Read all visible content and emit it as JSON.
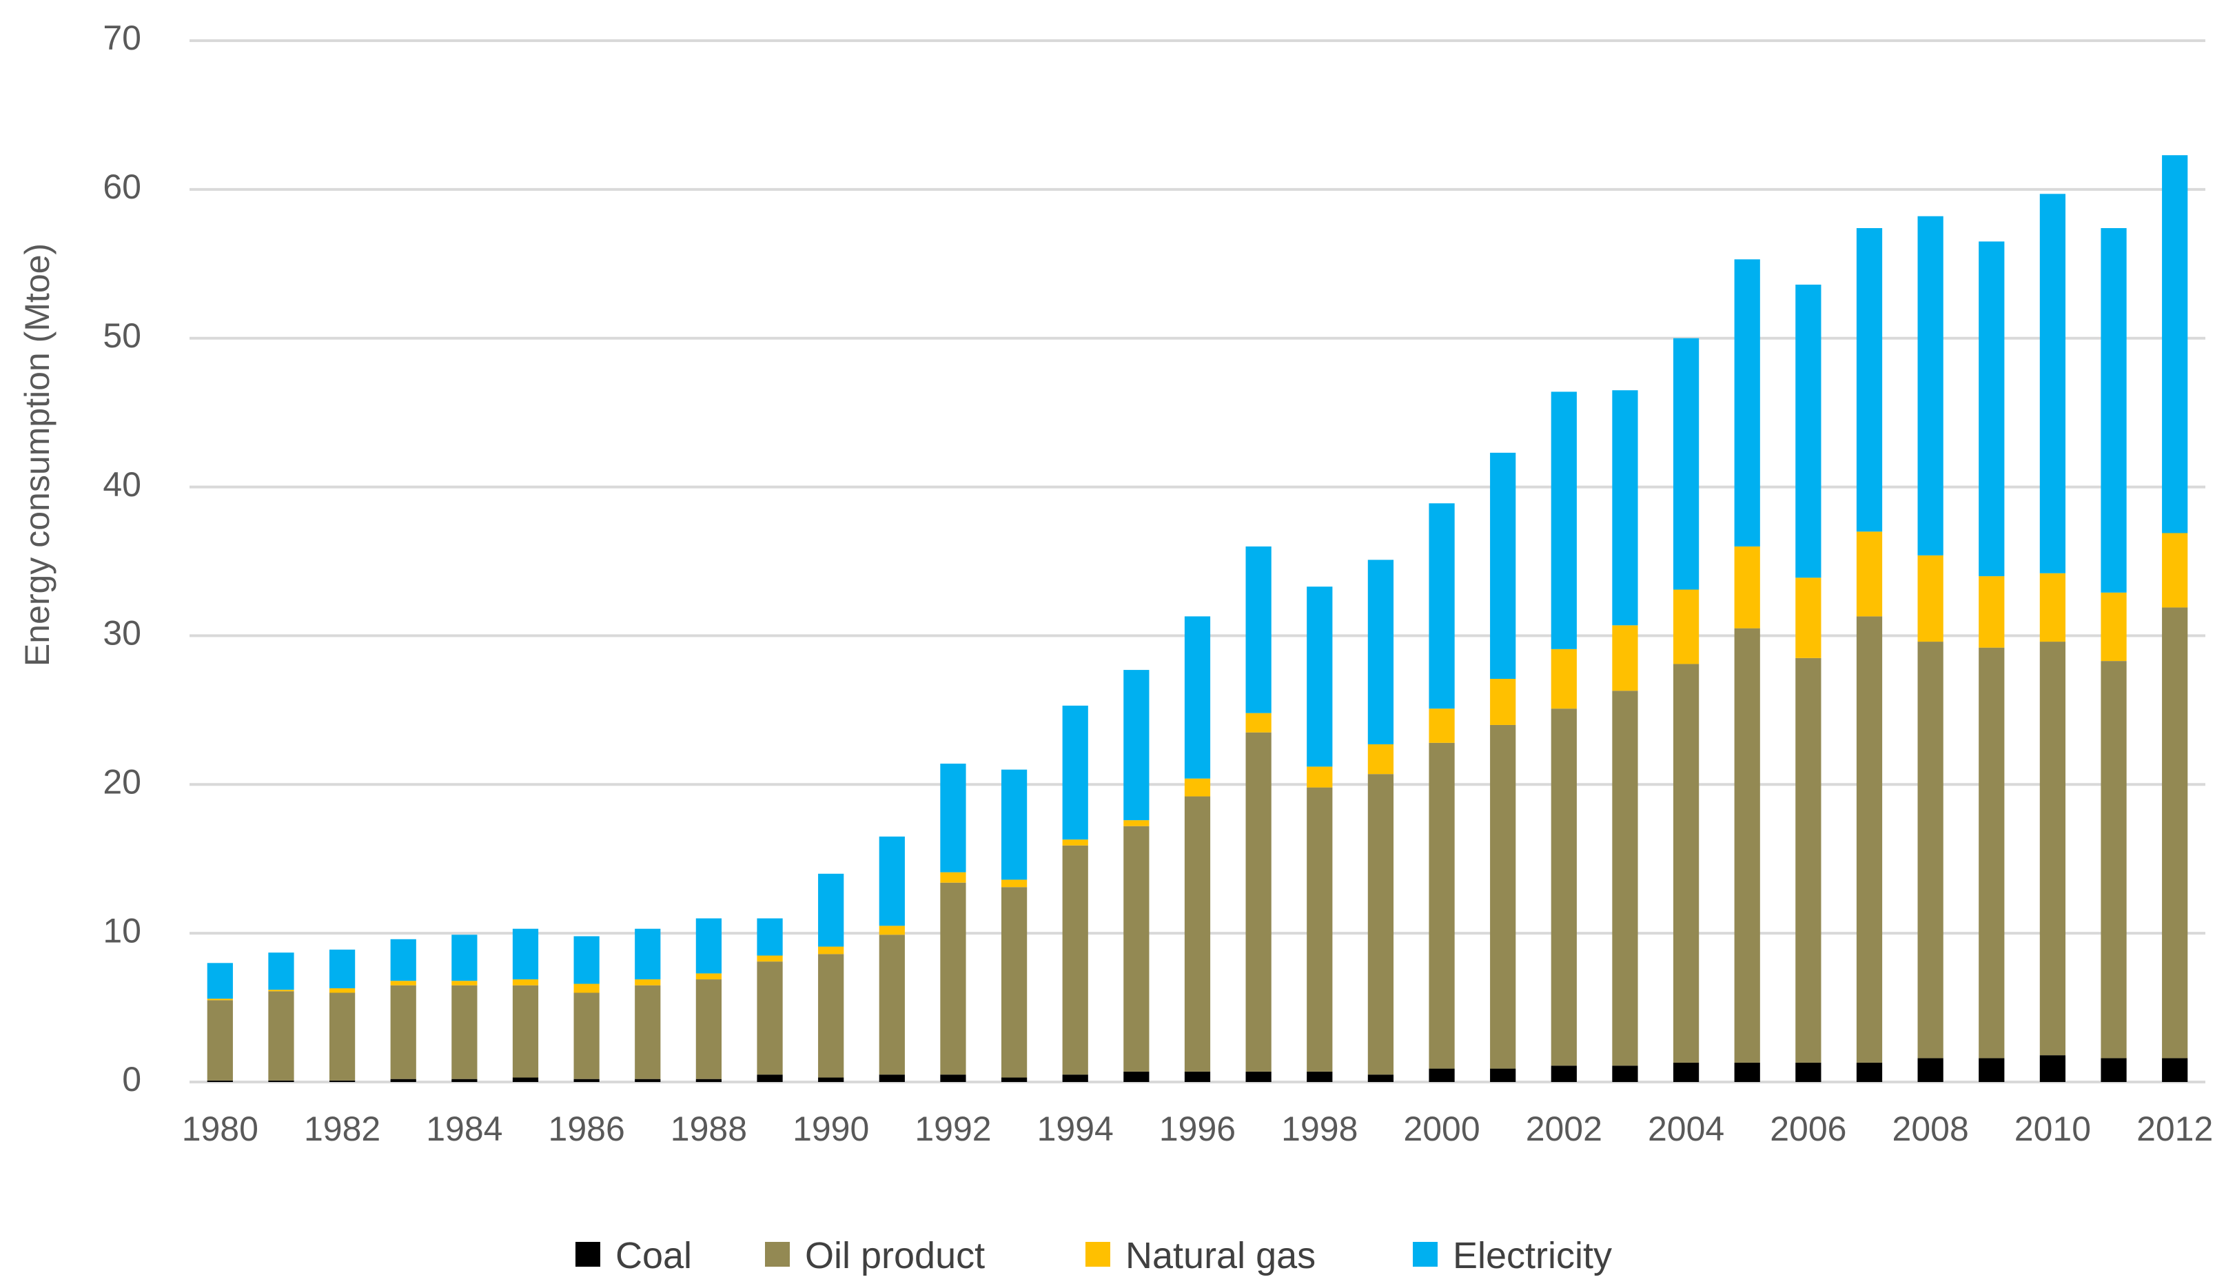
{
  "chart_data": {
    "type": "bar",
    "stacked": true,
    "title": "",
    "xlabel": "",
    "ylabel": "Energy consumption (Mtoe)",
    "ylim": [
      0,
      70
    ],
    "yticks": [
      0,
      10,
      20,
      30,
      40,
      50,
      60,
      70
    ],
    "grid": true,
    "legend_position": "bottom",
    "categories": [
      "1980",
      "1981",
      "1982",
      "1983",
      "1984",
      "1985",
      "1986",
      "1987",
      "1988",
      "1989",
      "1990",
      "1991",
      "1992",
      "1993",
      "1994",
      "1995",
      "1996",
      "1997",
      "1998",
      "1999",
      "2000",
      "2001",
      "2002",
      "2003",
      "2004",
      "2005",
      "2006",
      "2007",
      "2008",
      "2009",
      "2010",
      "2011",
      "2012"
    ],
    "tick_labels": [
      "1980",
      "",
      "1982",
      "",
      "1984",
      "",
      "1986",
      "",
      "1988",
      "",
      "1990",
      "",
      "1992",
      "",
      "1994",
      "",
      "1996",
      "",
      "1998",
      "",
      "2000",
      "",
      "2002",
      "",
      "2004",
      "",
      "2006",
      "",
      "2008",
      "",
      "2010",
      "",
      "2012"
    ],
    "series": [
      {
        "name": "Coal",
        "color": "#000000",
        "values": [
          0.1,
          0.1,
          0.1,
          0.2,
          0.2,
          0.3,
          0.2,
          0.2,
          0.2,
          0.5,
          0.3,
          0.5,
          0.5,
          0.3,
          0.5,
          0.7,
          0.7,
          0.7,
          0.7,
          0.5,
          0.9,
          0.9,
          1.1,
          1.1,
          1.3,
          1.3,
          1.3,
          1.3,
          1.6,
          1.6,
          1.8,
          1.6,
          1.6
        ]
      },
      {
        "name": "Oil product",
        "color": "#938953",
        "values": [
          5.4,
          6.0,
          5.9,
          6.3,
          6.3,
          6.2,
          5.8,
          6.3,
          6.7,
          7.6,
          8.3,
          9.4,
          12.9,
          12.8,
          15.4,
          16.5,
          18.5,
          22.8,
          19.1,
          20.2,
          21.9,
          23.1,
          24.0,
          25.2,
          26.8,
          29.2,
          27.2,
          30.0,
          28.0,
          27.6,
          27.8,
          26.7,
          30.3
        ]
      },
      {
        "name": "Natural gas",
        "color": "#ffc000",
        "values": [
          0.1,
          0.1,
          0.3,
          0.3,
          0.3,
          0.4,
          0.6,
          0.4,
          0.4,
          0.4,
          0.5,
          0.6,
          0.7,
          0.5,
          0.4,
          0.4,
          1.2,
          1.3,
          1.4,
          2.0,
          2.3,
          3.1,
          4.0,
          4.4,
          5.0,
          5.5,
          5.4,
          5.7,
          5.8,
          4.8,
          4.6,
          4.6,
          5.0
        ]
      },
      {
        "name": "Electricity",
        "color": "#00b0f0",
        "values": [
          2.4,
          2.5,
          2.6,
          2.8,
          3.1,
          3.4,
          3.2,
          3.4,
          3.7,
          2.5,
          4.9,
          6.0,
          7.3,
          7.4,
          9.0,
          10.1,
          10.9,
          11.2,
          12.1,
          12.4,
          13.8,
          15.2,
          17.3,
          15.8,
          16.9,
          19.3,
          19.7,
          20.4,
          22.8,
          22.5,
          25.5,
          24.5,
          25.4
        ]
      }
    ]
  }
}
